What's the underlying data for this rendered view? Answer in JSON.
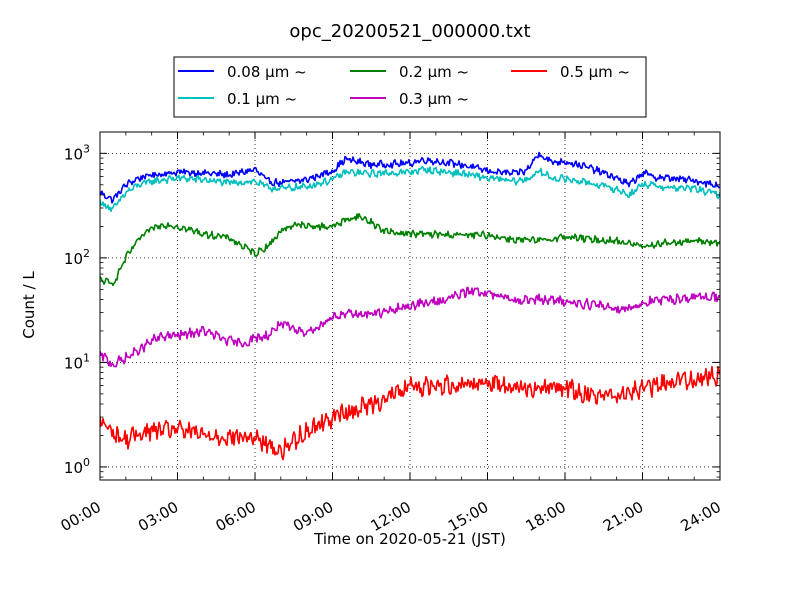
{
  "chart_data": {
    "type": "line",
    "title": "opc_20200521_000000.txt",
    "xlabel": "Time on 2020-05-21 (JST)",
    "ylabel": "Count / L",
    "x_unit": "hours",
    "xlim": [
      0,
      24
    ],
    "y_scale": "log",
    "ylim": [
      0.75,
      1600
    ],
    "grid": true,
    "legend_position": "top-center",
    "x_ticks": [
      {
        "x": 0,
        "label": "00:00"
      },
      {
        "x": 3,
        "label": "03:00"
      },
      {
        "x": 6,
        "label": "06:00"
      },
      {
        "x": 9,
        "label": "09:00"
      },
      {
        "x": 12,
        "label": "12:00"
      },
      {
        "x": 15,
        "label": "15:00"
      },
      {
        "x": 18,
        "label": "18:00"
      },
      {
        "x": 21,
        "label": "21:00"
      },
      {
        "x": 24,
        "label": "24:00"
      }
    ],
    "y_ticks": [
      {
        "y": 1,
        "base": "10",
        "exp": "0"
      },
      {
        "y": 10,
        "base": "10",
        "exp": "1"
      },
      {
        "y": 100,
        "base": "10",
        "exp": "2"
      },
      {
        "y": 1000,
        "base": "10",
        "exp": "3"
      }
    ],
    "series": [
      {
        "name": "0.08 μm ~",
        "color": "#0000ff",
        "x": [
          0,
          0.5,
          1,
          1.5,
          2,
          3,
          4,
          5,
          6,
          6.5,
          7,
          8,
          9,
          9.5,
          10.5,
          12,
          12.5,
          14,
          15,
          16,
          16.5,
          17,
          17.5,
          18,
          19,
          20,
          20.5,
          21,
          21.5,
          22,
          23,
          24
        ],
        "y": [
          420,
          360,
          500,
          580,
          620,
          660,
          650,
          620,
          700,
          540,
          520,
          560,
          680,
          880,
          780,
          800,
          870,
          780,
          680,
          640,
          680,
          1000,
          820,
          840,
          720,
          580,
          500,
          650,
          590,
          580,
          550,
          490
        ]
      },
      {
        "name": "0.1 μm ~",
        "color": "#00bfbf",
        "x": [
          0,
          0.5,
          1,
          1.5,
          2,
          3,
          4,
          5,
          6,
          6.5,
          7,
          8,
          9,
          9.5,
          10.5,
          12,
          12.5,
          14,
          15,
          16,
          16.5,
          17,
          17.5,
          18,
          19,
          20,
          20.5,
          21,
          21.5,
          22,
          23,
          24
        ],
        "y": [
          340,
          290,
          420,
          500,
          540,
          580,
          560,
          520,
          540,
          470,
          460,
          480,
          560,
          660,
          640,
          660,
          700,
          640,
          580,
          540,
          560,
          670,
          580,
          570,
          520,
          450,
          400,
          510,
          490,
          470,
          460,
          400
        ]
      },
      {
        "name": "0.2 μm ~",
        "color": "#008000",
        "x": [
          0,
          0.5,
          1,
          1.5,
          2,
          2.5,
          3,
          4,
          5,
          6,
          6.5,
          7,
          7.5,
          8,
          9,
          9.5,
          10,
          10.5,
          11,
          12,
          14,
          15,
          16,
          17,
          18,
          19,
          20,
          21,
          22,
          23,
          24
        ],
        "y": [
          62,
          56,
          100,
          150,
          190,
          210,
          200,
          170,
          155,
          110,
          130,
          180,
          210,
          200,
          200,
          230,
          250,
          220,
          180,
          170,
          165,
          165,
          150,
          145,
          160,
          150,
          145,
          130,
          140,
          145,
          140
        ]
      },
      {
        "name": "0.3 μm ~",
        "color": "#bf00bf",
        "x": [
          0,
          0.5,
          1,
          1.5,
          2,
          2.5,
          3,
          4,
          5,
          5.5,
          6,
          6.5,
          7,
          7.5,
          8,
          8.5,
          9,
          10,
          11,
          12,
          13,
          14,
          14.5,
          15,
          16,
          17,
          18,
          19,
          20,
          20.5,
          21,
          22,
          23,
          24
        ],
        "y": [
          12,
          9.5,
          11,
          13,
          16,
          18,
          18,
          20,
          16,
          15,
          17,
          18,
          24,
          20,
          20,
          22,
          28,
          29,
          30,
          35,
          38,
          45,
          50,
          45,
          40,
          40,
          38,
          36,
          33,
          33,
          37,
          40,
          42,
          43
        ]
      },
      {
        "name": "0.5 μm ~",
        "color": "#ff0000",
        "x": [
          0,
          0.5,
          1,
          1.5,
          2,
          3,
          4,
          5,
          6,
          6.5,
          7,
          7.5,
          8,
          9,
          10,
          11,
          12,
          13,
          14,
          15,
          16,
          17,
          18,
          18.5,
          19,
          20,
          21,
          22,
          23,
          24
        ],
        "y": [
          2.8,
          2.1,
          1.8,
          2.1,
          2.2,
          2.3,
          2.0,
          1.95,
          1.9,
          1.6,
          1.4,
          1.8,
          2.2,
          3.0,
          3.6,
          4.5,
          5.8,
          6.0,
          6.2,
          6.5,
          6.0,
          5.5,
          6.0,
          5.0,
          5.0,
          5.0,
          5.5,
          6.5,
          7.0,
          7.5
        ]
      }
    ]
  }
}
